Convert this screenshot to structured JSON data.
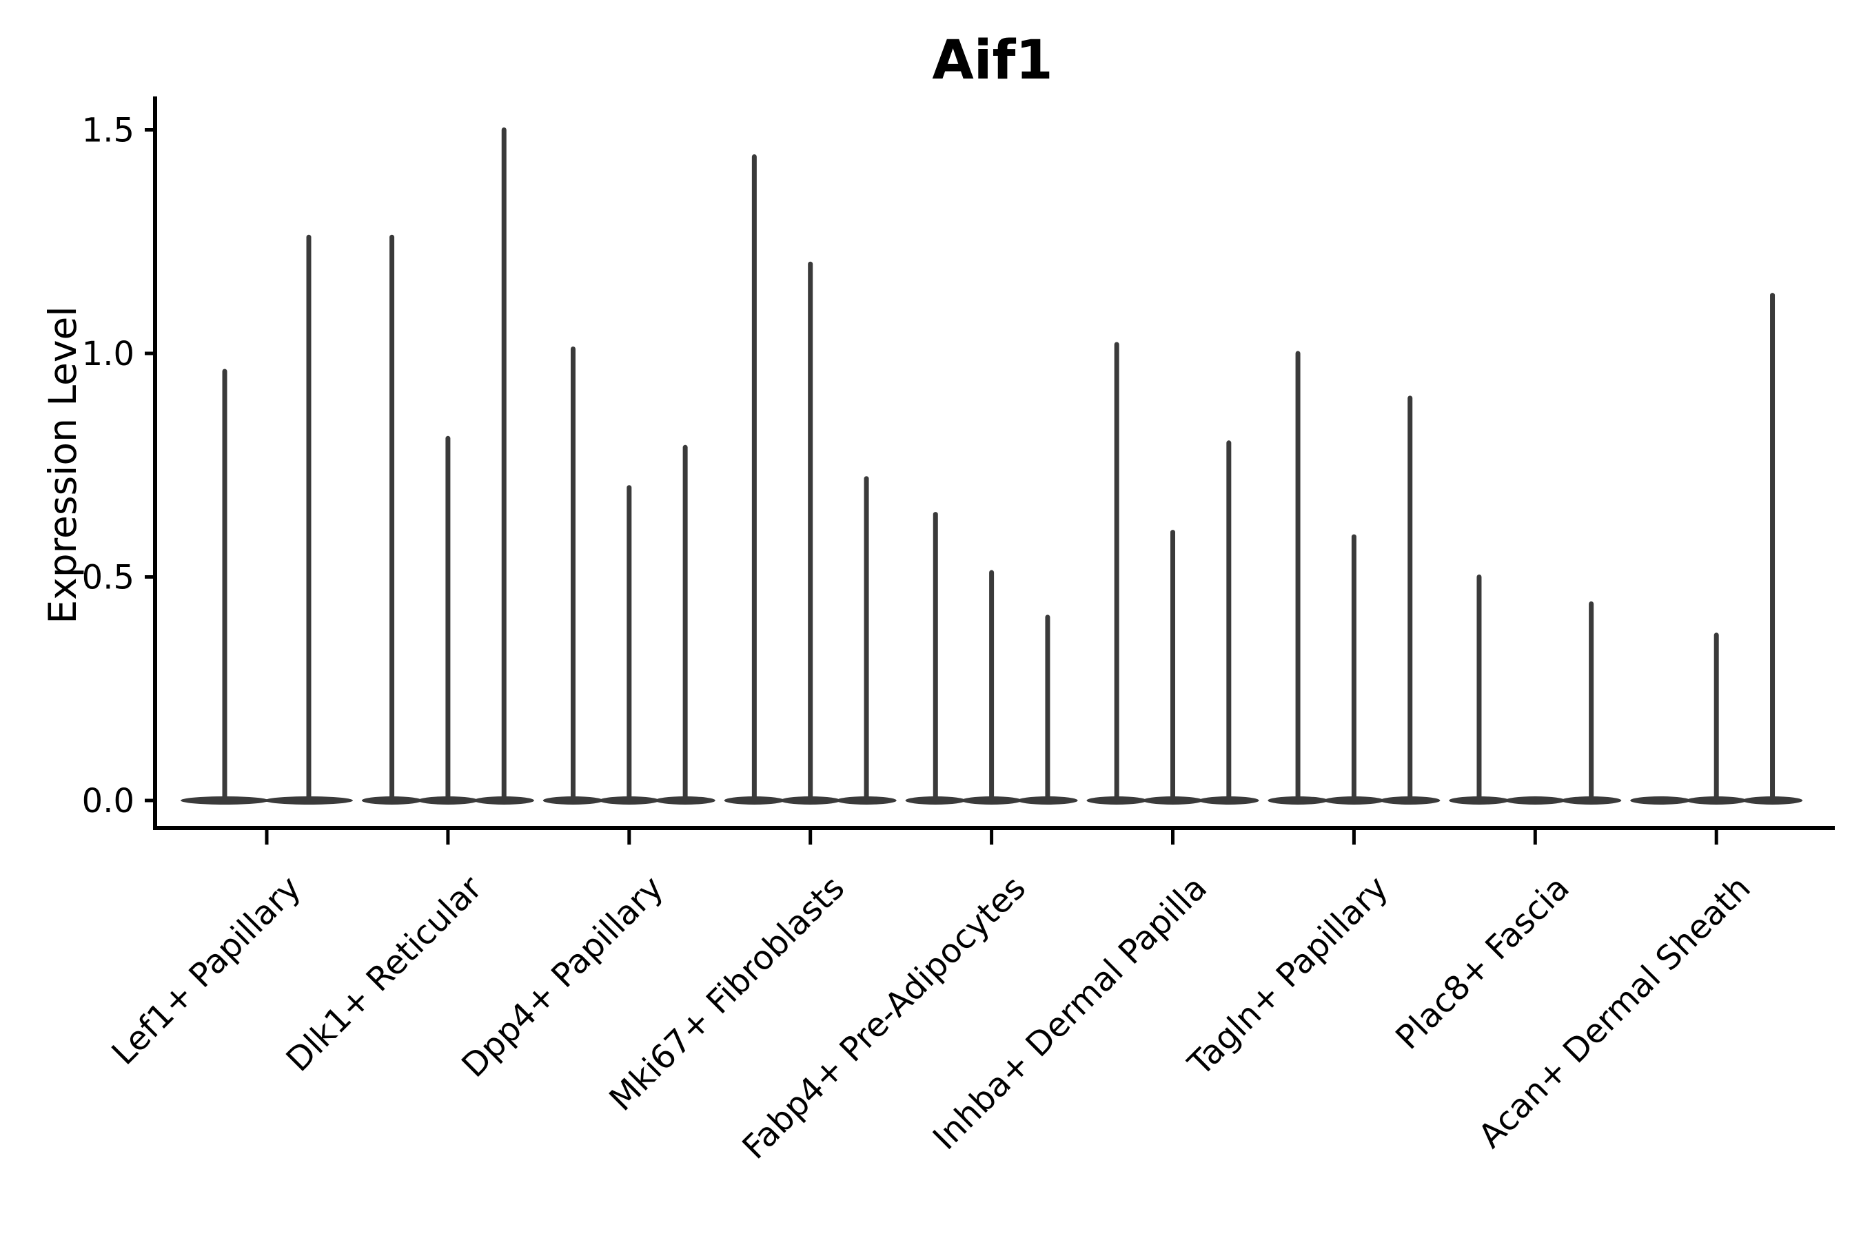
{
  "figure": {
    "background": "#ffffff"
  },
  "chart_data": {
    "type": "violin",
    "title": "Aif1",
    "ylabel": "Expression Level",
    "xlabel": "",
    "ylim": [
      -0.07,
      1.57
    ],
    "yticks": [
      0.0,
      0.5,
      1.0,
      1.5
    ],
    "ytick_labels": [
      "0.0",
      "0.5",
      "1.0",
      "1.5"
    ],
    "grid": false,
    "legend": "none",
    "violin_shape": "thin vertical spike rising from a flat wide base at 0 (most cells at zero expression)",
    "violin_color": "#3a3a3a",
    "axis_color": "#000000",
    "categories": [
      {
        "label": "Lef1+ Papillary",
        "violin_peaks": [
          0.96,
          1.26
        ]
      },
      {
        "label": "Dlk1+ Reticular",
        "violin_peaks": [
          1.26,
          0.81,
          1.5
        ]
      },
      {
        "label": "Dpp4+ Papillary",
        "violin_peaks": [
          1.01,
          0.7,
          0.79
        ]
      },
      {
        "label": "Mki67+ Fibroblasts",
        "violin_peaks": [
          1.44,
          1.2,
          0.72
        ]
      },
      {
        "label": "Fabp4+ Pre-Adipocytes",
        "violin_peaks": [
          0.64,
          0.51,
          0.41
        ]
      },
      {
        "label": "Inhba+ Dermal Papilla",
        "violin_peaks": [
          1.02,
          0.6,
          0.8
        ]
      },
      {
        "label": "Tagln+ Papillary",
        "violin_peaks": [
          1.0,
          0.59,
          0.9
        ]
      },
      {
        "label": "Plac8+ Fascia",
        "violin_peaks": [
          0.5,
          0,
          0.44
        ]
      },
      {
        "label": "Acan+ Dermal Sheath",
        "violin_peaks": [
          0,
          0.37,
          1.13
        ]
      }
    ]
  }
}
